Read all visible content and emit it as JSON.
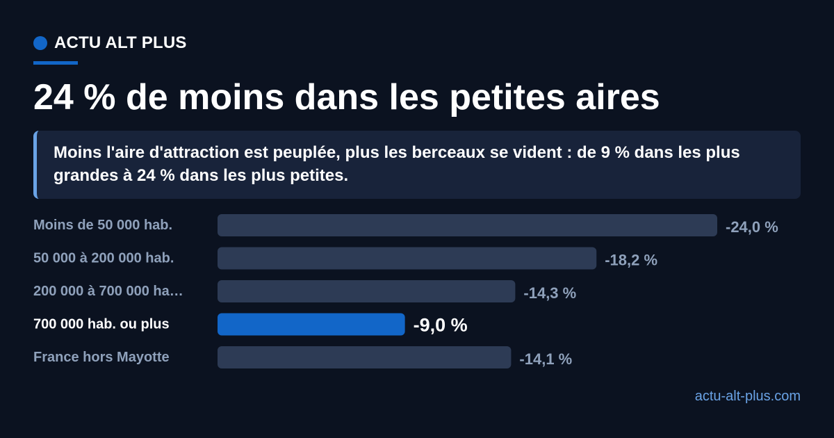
{
  "brand": {
    "name": "ACTU ALT PLUS"
  },
  "title": "24 % de moins dans les petites aires",
  "lede": "Moins l'aire d'attraction est peuplée, plus les berceaux se vident : de 9 % dans les plus grandes à 24 % dans les plus petites.",
  "source": "actu-alt-plus.com",
  "colors": {
    "background": "#0b1220",
    "accent": "#1266c8",
    "bar": "#2d3b55",
    "label": "#8fa1bb",
    "panel": "#18233a",
    "link": "#6aa3e6"
  },
  "chart_data": {
    "type": "bar",
    "orientation": "horizontal",
    "categories": [
      "Moins de 50 000 hab.",
      "50 000 à 200 000 hab.",
      "200 000 à 700 000 ha…",
      "700 000 hab. ou plus",
      "France hors Mayotte"
    ],
    "values": [
      -24.0,
      -18.2,
      -14.3,
      -9.0,
      -14.1
    ],
    "value_labels": [
      "-24,0 %",
      "-18,2 %",
      "-14,3 %",
      "-9,0 %",
      "-14,1 %"
    ],
    "highlight_index": 3,
    "xlim": [
      0,
      -24.0
    ]
  }
}
